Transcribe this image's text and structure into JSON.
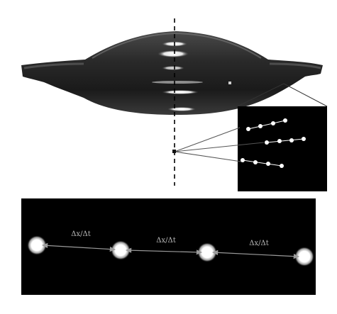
{
  "figure": {
    "upper_panel": {
      "description_shapes": [
        "drop-profile",
        "vertical-axis-dashed",
        "zoom-inset"
      ],
      "inset_rows": [
        {
          "dots": 4
        },
        {
          "dots": 4
        },
        {
          "dots": 4
        }
      ]
    },
    "lower_panel": {
      "particles": 4,
      "labels": [
        "Δx/Δt",
        "Δx/Δt",
        "Δx/Δt"
      ]
    },
    "colors": {
      "drop_dark": "#1c1c1c",
      "drop_mid": "#6a6a6a",
      "panel_bg": "#000000",
      "arrow": "#8a8a8a",
      "dot": "#ffffff"
    }
  }
}
